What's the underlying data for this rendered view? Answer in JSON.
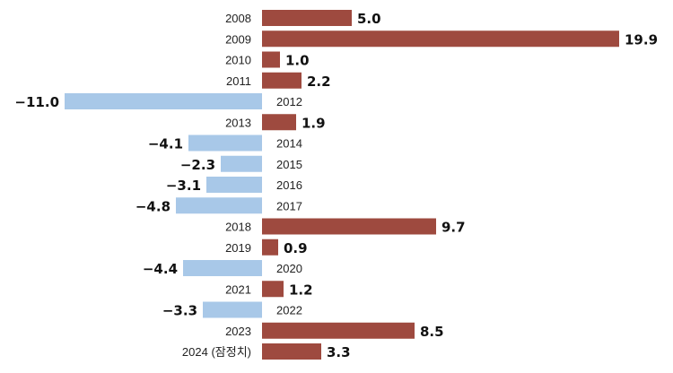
{
  "chart_data": {
    "type": "bar",
    "orientation": "horizontal",
    "categories": [
      "2008",
      "2009",
      "2010",
      "2011",
      "2012",
      "2013",
      "2014",
      "2015",
      "2016",
      "2017",
      "2018",
      "2019",
      "2020",
      "2021",
      "2022",
      "2023",
      "2024 (잠정치)"
    ],
    "values": [
      5.0,
      19.9,
      1.0,
      2.2,
      -11.0,
      1.9,
      -4.1,
      -2.3,
      -3.1,
      -4.8,
      9.7,
      0.9,
      -4.4,
      1.2,
      -3.3,
      8.5,
      3.3
    ],
    "value_labels": [
      "5.0",
      "19.9",
      "1.0",
      "2.2",
      "−11.0",
      "1.9",
      "−4.1",
      "−2.3",
      "−3.1",
      "−4.8",
      "9.7",
      "0.9",
      "−4.4",
      "1.2",
      "−3.3",
      "8.5",
      "3.3"
    ],
    "colors": {
      "positive": "#9e4a3f",
      "negative": "#a8c8e8"
    },
    "title": "",
    "xlabel": "",
    "ylabel": "",
    "grid": false,
    "legend": "none"
  }
}
